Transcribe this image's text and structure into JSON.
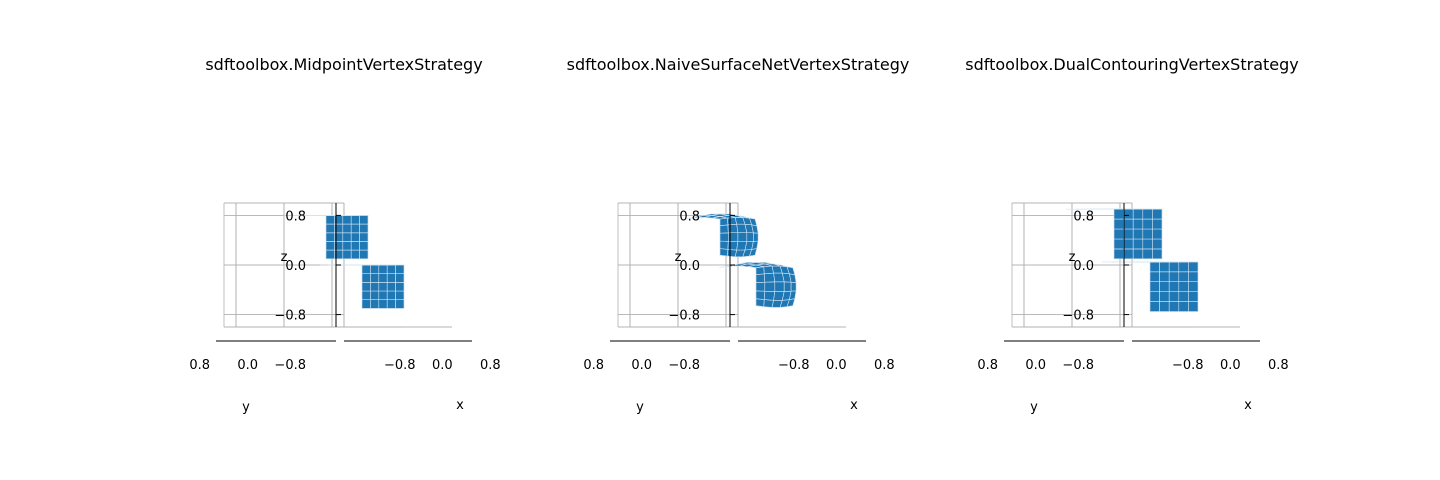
{
  "figure": {
    "background": "#ffffff",
    "surface_color": "#1f77b4",
    "edge_color": "#d4e3f1",
    "grid_color": "#b0b0b0"
  },
  "chart_data": [
    {
      "type": "3d-surface",
      "title": "sdftoolbox.MidpointVertexStrategy",
      "xlabel": "x",
      "ylabel": "y",
      "zlabel": "z",
      "xticks": [
        "−0.8",
        "0.0",
        "0.8"
      ],
      "yticks": [
        "−0.8",
        "0.0",
        "0.8"
      ],
      "zticks": [
        "−0.8",
        "0.0",
        "0.8"
      ],
      "xlim": [
        -1.0,
        1.0
      ],
      "ylim": [
        -1.0,
        1.0
      ],
      "zlim": [
        -1.0,
        1.0
      ],
      "grid": true,
      "shape": "two offset boxes",
      "blobs": [
        {
          "center": [
            -0.15,
            0.15,
            0.45
          ],
          "half": [
            0.35,
            0.35,
            0.35
          ],
          "kind": "box"
        },
        {
          "center": [
            0.15,
            -0.15,
            -0.35
          ],
          "half": [
            0.35,
            0.35,
            0.35
          ],
          "kind": "box"
        }
      ]
    },
    {
      "type": "3d-surface",
      "title": "sdftoolbox.NaiveSurfaceNetVertexStrategy",
      "xlabel": "x",
      "ylabel": "y",
      "zlabel": "z",
      "xticks": [
        "−0.8",
        "0.0",
        "0.8"
      ],
      "yticks": [
        "−0.8",
        "0.0",
        "0.8"
      ],
      "zticks": [
        "−0.8",
        "0.0",
        "0.8"
      ],
      "xlim": [
        -1.0,
        1.0
      ],
      "ylim": [
        -1.0,
        1.0
      ],
      "zlim": [
        -1.0,
        1.0
      ],
      "grid": true,
      "shape": "two rounded blobs",
      "blobs": [
        {
          "center": [
            -0.15,
            0.15,
            0.45
          ],
          "half": [
            0.38,
            0.38,
            0.38
          ],
          "kind": "round"
        },
        {
          "center": [
            0.15,
            -0.15,
            -0.35
          ],
          "half": [
            0.4,
            0.4,
            0.4
          ],
          "kind": "round"
        }
      ]
    },
    {
      "type": "3d-surface",
      "title": "sdftoolbox.DualContouringVertexStrategy",
      "xlabel": "x",
      "ylabel": "y",
      "zlabel": "z",
      "xticks": [
        "−0.8",
        "0.0",
        "0.8"
      ],
      "yticks": [
        "−0.8",
        "0.0",
        "0.8"
      ],
      "zticks": [
        "−0.8",
        "0.0",
        "0.8"
      ],
      "xlim": [
        -1.0,
        1.0
      ],
      "ylim": [
        -1.0,
        1.0
      ],
      "zlim": [
        -1.0,
        1.0
      ],
      "grid": true,
      "shape": "two offset boxes (sharp)",
      "blobs": [
        {
          "center": [
            -0.15,
            0.15,
            0.5
          ],
          "half": [
            0.4,
            0.4,
            0.4
          ],
          "kind": "box"
        },
        {
          "center": [
            0.15,
            -0.15,
            -0.35
          ],
          "half": [
            0.4,
            0.4,
            0.4
          ],
          "kind": "box"
        }
      ]
    }
  ]
}
